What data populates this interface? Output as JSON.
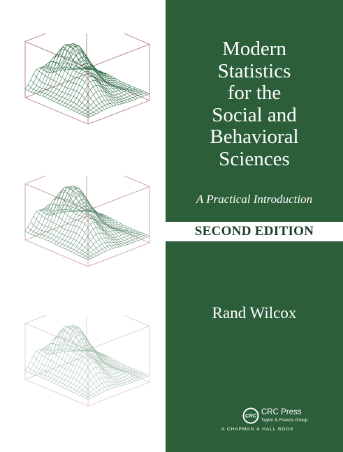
{
  "title_lines": [
    "Modern",
    "Statistics",
    "for the",
    "Social and",
    "Behavioral",
    "Sciences"
  ],
  "subtitle": "A Practical Introduction",
  "edition": "SECOND EDITION",
  "author": "Rand Wilcox",
  "publisher": {
    "logo_text": "CRC",
    "name": "CRC Press",
    "group": "Taylor & Francis Group",
    "imprint": "A CHAPMAN & HALL BOOK"
  },
  "colors": {
    "panel_green": "#2b5e39",
    "plot_mesh_green": "#2f6b48",
    "box_lines": "#b57d7d",
    "background": "#ffffff"
  },
  "plots": [
    {
      "name": "surface-plot-1",
      "opacity": 1.0
    },
    {
      "name": "surface-plot-2",
      "opacity": 0.75
    },
    {
      "name": "surface-plot-3",
      "opacity": 0.4
    }
  ]
}
